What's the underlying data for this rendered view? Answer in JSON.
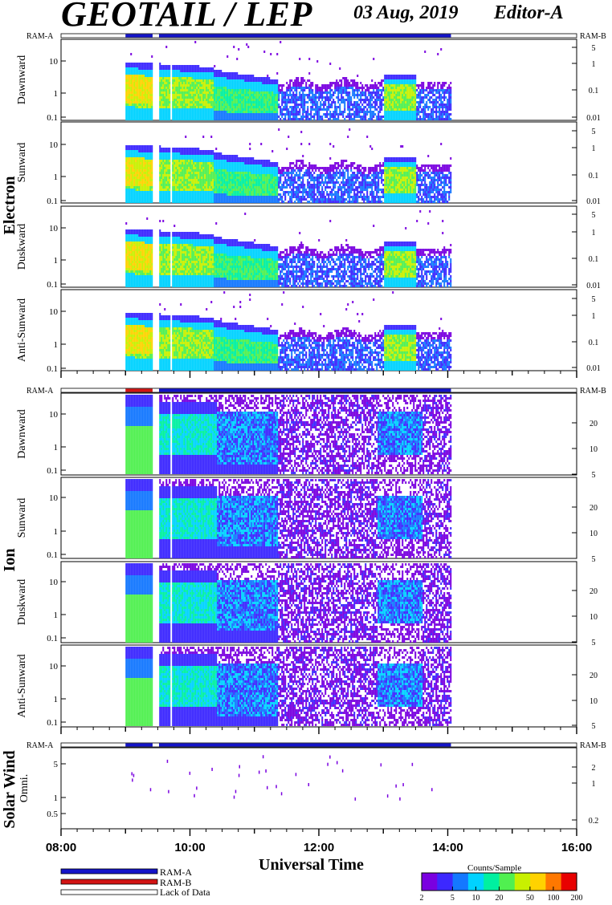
{
  "header": {
    "title": "GEOTAIL / LEP",
    "date": "03 Aug, 2019",
    "editor": "Editor-A"
  },
  "colors": {
    "ram_a": "#1414c8",
    "ram_b": "#d21414",
    "lack_of_data": "#ffffff",
    "colormap": [
      "#7a00e0",
      "#3c28ff",
      "#1478ff",
      "#00d2ff",
      "#00f0a0",
      "#50f050",
      "#c8f000",
      "#ffd200",
      "#ff7800",
      "#e80000"
    ]
  },
  "chart_data": {
    "type": "heatmap",
    "x_axis": {
      "label": "Universal Time",
      "ticks": [
        "08:00",
        "10:00",
        "12:00",
        "14:00",
        "16:00"
      ],
      "range_hours": [
        8,
        16
      ]
    },
    "data_coverage": {
      "start_hour": 9.0,
      "end_hour": 14.05,
      "gaps_hours": [
        [
          9.42,
          9.52
        ],
        [
          9.68,
          9.7
        ]
      ]
    },
    "mode_bars": [
      {
        "panel_group": "electron",
        "segments": [
          {
            "mode": "RAM-A",
            "from": 9.0,
            "to": 9.42
          },
          {
            "mode": "RAM-A",
            "from": 9.52,
            "to": 14.05
          }
        ]
      },
      {
        "panel_group": "ion",
        "segments": [
          {
            "mode": "RAM-B",
            "from": 9.0,
            "to": 9.42
          },
          {
            "mode": "RAM-A",
            "from": 9.52,
            "to": 14.05
          }
        ]
      },
      {
        "panel_group": "solar_wind",
        "segments": [
          {
            "mode": "RAM-A",
            "from": 9.0,
            "to": 9.42
          },
          {
            "mode": "RAM-A",
            "from": 9.52,
            "to": 14.05
          }
        ]
      }
    ],
    "groups": [
      {
        "name": "Electron",
        "ram_left": "RAM-A",
        "ram_right": "RAM-B",
        "panels": [
          {
            "label": "Dawnward",
            "y_left_ticks": [
              "10",
              "1",
              "0.1"
            ],
            "y_right_ticks": [
              "5",
              "1",
              "0.1",
              "0.01"
            ]
          },
          {
            "label": "Sunward",
            "y_left_ticks": [
              "10",
              "1",
              "0.1"
            ],
            "y_right_ticks": [
              "5",
              "1",
              "0.1",
              "0.01"
            ]
          },
          {
            "label": "Duskward",
            "y_left_ticks": [
              "10",
              "1",
              "0.1"
            ],
            "y_right_ticks": [
              "5",
              "1",
              "0.1",
              "0.01"
            ]
          },
          {
            "label": "Anti-Sunward",
            "y_left_ticks": [
              "10",
              "1",
              "0.1"
            ],
            "y_right_ticks": [
              "5",
              "1",
              "0.1",
              "0.01"
            ]
          }
        ]
      },
      {
        "name": "Ion",
        "ram_left": "RAM-A",
        "ram_right": "RAM-B",
        "panels": [
          {
            "label": "Dawnward",
            "y_left_ticks": [
              "10",
              "1",
              "0.1"
            ],
            "y_right_ticks": [
              "20",
              "10",
              "5"
            ]
          },
          {
            "label": "Sunward",
            "y_left_ticks": [
              "10",
              "1",
              "0.1"
            ],
            "y_right_ticks": [
              "20",
              "10",
              "5"
            ]
          },
          {
            "label": "Duskward",
            "y_left_ticks": [
              "10",
              "1",
              "0.1"
            ],
            "y_right_ticks": [
              "20",
              "10",
              "5"
            ]
          },
          {
            "label": "Anti-Sunward",
            "y_left_ticks": [
              "10",
              "1",
              "0.1"
            ],
            "y_right_ticks": [
              "20",
              "10",
              "5"
            ]
          }
        ]
      },
      {
        "name": "Solar Wind",
        "ram_left": "RAM-A",
        "ram_right": "RAM-B",
        "panels": [
          {
            "label": "Omni.",
            "y_left_ticks": [
              "5",
              "1",
              "0.5"
            ],
            "y_right_ticks": [
              "2",
              "1",
              "0.2"
            ]
          }
        ]
      }
    ],
    "legend": [
      {
        "label": "RAM-A",
        "color": "#1414c8"
      },
      {
        "label": "RAM-B",
        "color": "#d21414"
      },
      {
        "label": "Lack of Data",
        "color": "#ffffff"
      }
    ],
    "colorbar": {
      "title": "Counts/Sample",
      "ticks": [
        "2",
        "5",
        "10",
        "20",
        "50",
        "100",
        "200"
      ],
      "range": [
        2,
        200
      ],
      "scale": "log"
    }
  }
}
